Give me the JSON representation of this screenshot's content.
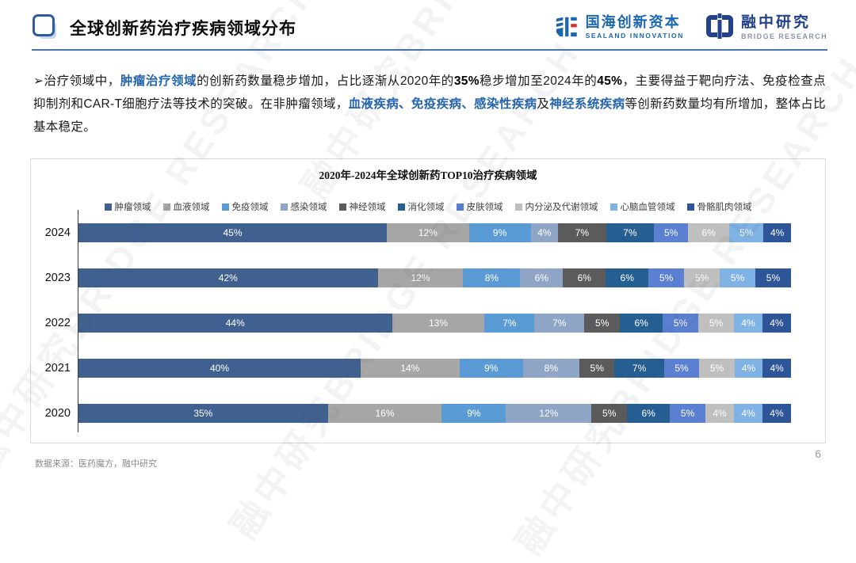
{
  "colors": {
    "brand_blue": "#2C5C9E",
    "highlight_text": "#2565AE",
    "logo_blue": "#1B66B0",
    "logo_navy": "#23418C",
    "logo_red": "#C8372D",
    "axis": "#404040"
  },
  "watermark": {
    "text": "融中研究BRIDGE RESEARCH"
  },
  "header": {
    "title": "全球创新药治疗疾病领域分布",
    "logos": [
      {
        "cn": "国海创新资本",
        "en": "SEALAND INNOVATION"
      },
      {
        "cn": "融中研究",
        "en": "BRIDGE RESEARCH"
      }
    ]
  },
  "body": {
    "paragraph_runs": [
      {
        "text": "➢治疗领域中，",
        "style": "normal"
      },
      {
        "text": "肿瘤治疗领域",
        "style": "blue"
      },
      {
        "text": "的创新药数量稳步增加，占比逐渐从2020年的",
        "style": "normal"
      },
      {
        "text": "35%",
        "style": "bold"
      },
      {
        "text": "稳步增加至2024年的",
        "style": "normal"
      },
      {
        "text": "45%",
        "style": "bold"
      },
      {
        "text": "，主要得益于靶向疗法、免疫检查点抑制剂和CAR-T细胞疗法等技术的突破。在非肿瘤领域，",
        "style": "normal"
      },
      {
        "text": "血液疾病、免疫疾病、感染性疾病",
        "style": "blue"
      },
      {
        "text": "及",
        "style": "normal"
      },
      {
        "text": "神经系统疾病",
        "style": "blue"
      },
      {
        "text": "等创新药数量均有所增加，整体占比基本稳定。",
        "style": "normal"
      }
    ]
  },
  "chart_data": {
    "type": "bar",
    "orientation": "horizontal",
    "stacked": true,
    "title": "2020年-2024年全球创新药TOP10治疗疾病领域",
    "unit": "%",
    "legend_position": "top",
    "value_labels": "inside",
    "categories": [
      "2024",
      "2023",
      "2022",
      "2021",
      "2020"
    ],
    "series": [
      {
        "name": "肿瘤领域",
        "color": "#40618F",
        "values": [
          45,
          42,
          44,
          40,
          35
        ]
      },
      {
        "name": "血液领域",
        "color": "#A6A6A6",
        "values": [
          12,
          12,
          13,
          14,
          16
        ]
      },
      {
        "name": "免疫领域",
        "color": "#5B9BD5",
        "values": [
          9,
          8,
          7,
          9,
          9
        ]
      },
      {
        "name": "感染领域",
        "color": "#8FA5C6",
        "values": [
          4,
          6,
          7,
          8,
          12
        ]
      },
      {
        "name": "神经领域",
        "color": "#5B5B5B",
        "values": [
          7,
          6,
          5,
          5,
          5
        ]
      },
      {
        "name": "消化领域",
        "color": "#255E91",
        "values": [
          7,
          6,
          6,
          7,
          6
        ]
      },
      {
        "name": "皮肤领域",
        "color": "#5B7FD1",
        "values": [
          5,
          5,
          5,
          5,
          5
        ]
      },
      {
        "name": "内分泌及代谢领域",
        "color": "#BFBFBF",
        "values": [
          6,
          5,
          5,
          5,
          4
        ]
      },
      {
        "name": "心脑血管领域",
        "color": "#7FB2E5",
        "values": [
          5,
          5,
          4,
          4,
          4
        ]
      },
      {
        "name": "骨骼肌肉领域",
        "color": "#2D5597",
        "values": [
          4,
          5,
          4,
          4,
          4
        ]
      }
    ]
  },
  "footer": {
    "source": "数据来源：医药魔方，融中研究",
    "page_number": "6"
  }
}
